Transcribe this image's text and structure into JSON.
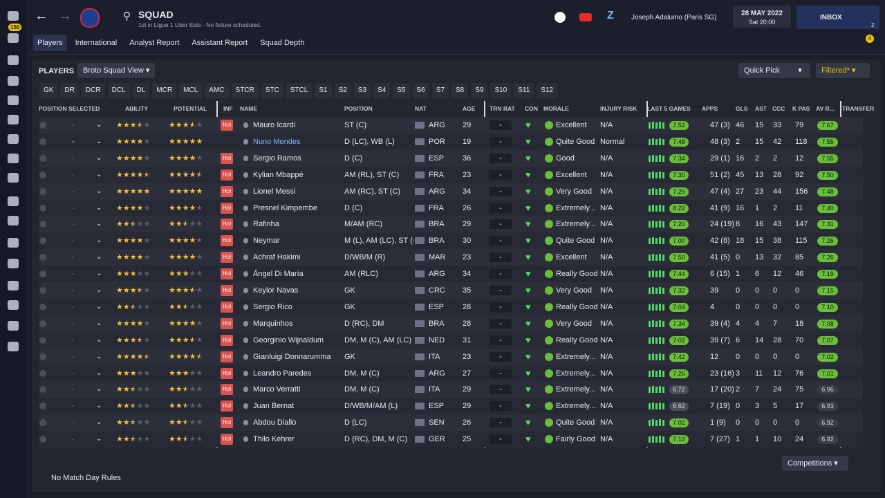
{
  "sidebar": {
    "badge": "150"
  },
  "header": {
    "title": "SQUAD",
    "subtitle": "1st in Ligue 1 Uber Eats - No fixture scheduled.",
    "manager": "Joseph Adalumo (Paris SG)",
    "date": "28 MAY 2022",
    "time": "Sat 20:00",
    "inbox": "INBOX",
    "inbox_count": "2",
    "alerts": "4"
  },
  "tabs": [
    "Players",
    "International",
    "Analyst Report",
    "Assistant Report",
    "Squad Depth"
  ],
  "toolbar": {
    "label": "PLAYERS",
    "view": "Broto Squad View",
    "quick_pick": "Quick Pick",
    "filter": "Filtered*"
  },
  "position_filters": [
    "GK",
    "DR",
    "DCR",
    "DCL",
    "DL",
    "MCR",
    "MCL",
    "AMC",
    "STCR",
    "STC",
    "STCL",
    "S1",
    "S2",
    "S3",
    "S4",
    "S5",
    "S6",
    "S7",
    "S8",
    "S9",
    "S10",
    "S11",
    "S12"
  ],
  "table": {
    "columns": {
      "selected": "POSITION SELECTED",
      "ability": "ABILITY",
      "potential": "POTENTIAL",
      "inf": "INF",
      "name": "NAME",
      "position": "POSITION",
      "nat": "NAT",
      "age": "AGE",
      "trn": "TRN RAT",
      "con": "CON",
      "morale": "MORALE",
      "injury": "INJURY RISK",
      "last5": "LAST 5 GAMES",
      "apps": "APPS",
      "gls": "GLS",
      "ast": "AST",
      "ccc": "CCC",
      "kpas": "K PAS",
      "avr": "AV R...",
      "transfer": "TRANSFER"
    },
    "rows": [
      {
        "selected": "-",
        "ability": 3.5,
        "potential": 3.5,
        "inf": "Hol",
        "name": "Mauro Icardi",
        "position": "ST (C)",
        "nat": "ARG",
        "age": 29,
        "trn": "-",
        "morale": "Excellent",
        "injury": "N/A",
        "last5": "7.52",
        "apps": "47 (3)",
        "gls": 46,
        "ast": 15,
        "ccc": 33,
        "kpas": 79,
        "avr": "7.67"
      },
      {
        "selected": "-",
        "ability": 4,
        "potential": 5,
        "name": "Nuno Mendes",
        "position": "D (LC), WB (L)",
        "nat": "POR",
        "age": 19,
        "trn": "-",
        "morale": "Quite Good",
        "injury": "Normal",
        "last5": "7.48",
        "apps": "48 (3)",
        "gls": 2,
        "ast": 15,
        "ccc": 42,
        "kpas": 118,
        "avr": "7.55"
      },
      {
        "selected": "-",
        "ability": 4,
        "potential": 4,
        "inf": "Hol",
        "name": "Sergio Ramos",
        "position": "D (C)",
        "nat": "ESP",
        "age": 36,
        "trn": "-",
        "morale": "Good",
        "injury": "N/A",
        "last5": "7.34",
        "apps": "29 (1)",
        "gls": 16,
        "ast": 2,
        "ccc": 2,
        "kpas": 12,
        "avr": "7.55"
      },
      {
        "selected": "-",
        "ability": 4.5,
        "potential": 4.5,
        "inf": "Hol",
        "name": "Kylian Mbappé",
        "position": "AM (RL), ST (C)",
        "nat": "FRA",
        "age": 23,
        "trn": "-",
        "morale": "Excellent",
        "injury": "N/A",
        "last5": "7.30",
        "apps": "51 (2)",
        "gls": 45,
        "ast": 13,
        "ccc": 28,
        "kpas": 92,
        "avr": "7.50"
      },
      {
        "selected": "-",
        "ability": 5,
        "potential": 5,
        "inf": "Hol",
        "name": "Lionel Messi",
        "position": "AM (RC), ST (C)",
        "nat": "ARG",
        "age": 34,
        "trn": "-",
        "morale": "Very Good",
        "injury": "N/A",
        "last5": "7.26",
        "apps": "47 (4)",
        "gls": 27,
        "ast": 23,
        "ccc": 44,
        "kpas": 156,
        "avr": "7.48"
      },
      {
        "selected": "-",
        "ability": 4,
        "potential": 4,
        "inf": "Hol",
        "name": "Presnel Kimpembe",
        "position": "D (C)",
        "nat": "FRA",
        "age": 26,
        "trn": "-",
        "morale": "Extremely...",
        "injury": "N/A",
        "last5": "8.22",
        "apps": "41 (9)",
        "gls": 16,
        "ast": 1,
        "ccc": 2,
        "kpas": 11,
        "avr": "7.40"
      },
      {
        "selected": "-",
        "ability": 2.5,
        "potential": 2.5,
        "inf": "Hol",
        "name": "Rafinha",
        "position": "M/AM (RC)",
        "nat": "BRA",
        "age": 29,
        "trn": "-",
        "morale": "Extremely...",
        "injury": "N/A",
        "last5": "7.20",
        "apps": "24 (19)",
        "gls": 8,
        "ast": 16,
        "ccc": 43,
        "kpas": 147,
        "avr": "7.31"
      },
      {
        "selected": "-",
        "ability": 4,
        "potential": 4,
        "inf": "Hol",
        "name": "Neymar",
        "position": "M (L), AM (LC), ST (C",
        "nat": "BRA",
        "age": 30,
        "trn": "-",
        "morale": "Quite Good",
        "injury": "N/A",
        "last5": "7.00",
        "apps": "42 (8)",
        "gls": 18,
        "ast": 15,
        "ccc": 38,
        "kpas": 115,
        "avr": "7.26"
      },
      {
        "selected": "-",
        "ability": 4,
        "potential": 4,
        "inf": "Hol",
        "name": "Achraf Hakimi",
        "position": "D/WB/M (R)",
        "nat": "MAR",
        "age": 23,
        "trn": "-",
        "morale": "Excellent",
        "injury": "N/A",
        "last5": "7.50",
        "apps": "41 (5)",
        "gls": 0,
        "ast": 13,
        "ccc": 32,
        "kpas": 85,
        "avr": "7.26"
      },
      {
        "selected": "-",
        "ability": 3,
        "potential": 3,
        "inf": "Hol",
        "name": "Ángel Di María",
        "position": "AM (RLC)",
        "nat": "ARG",
        "age": 34,
        "trn": "-",
        "morale": "Really Good",
        "injury": "N/A",
        "last5": "7.44",
        "apps": "6 (15)",
        "gls": 1,
        "ast": 6,
        "ccc": 12,
        "kpas": 46,
        "avr": "7.19"
      },
      {
        "selected": "-",
        "ability": 3.5,
        "potential": 3.5,
        "inf": "Hol",
        "name": "Keylor Navas",
        "position": "GK",
        "nat": "CRC",
        "age": 35,
        "trn": "-",
        "morale": "Very Good",
        "injury": "N/A",
        "last5": "7.32",
        "apps": "39",
        "gls": 0,
        "ast": 0,
        "ccc": 0,
        "kpas": 0,
        "avr": "7.15"
      },
      {
        "selected": "-",
        "ability": 2.5,
        "potential": 2.5,
        "inf": "Hol",
        "name": "Sergio Rico",
        "position": "GK",
        "nat": "ESP",
        "age": 28,
        "trn": "-",
        "morale": "Really Good",
        "injury": "N/A",
        "last5": "7.04",
        "apps": "4",
        "gls": 0,
        "ast": 0,
        "ccc": 0,
        "kpas": 0,
        "avr": "7.10"
      },
      {
        "selected": "-",
        "ability": 4,
        "potential": 4,
        "inf": "Hol",
        "name": "Marquinhos",
        "position": "D (RC), DM",
        "nat": "BRA",
        "age": 28,
        "trn": "-",
        "morale": "Very Good",
        "injury": "N/A",
        "last5": "7.34",
        "apps": "39 (4)",
        "gls": 4,
        "ast": 4,
        "ccc": 7,
        "kpas": 18,
        "avr": "7.08"
      },
      {
        "selected": "-",
        "ability": 3.5,
        "potential": 3.5,
        "inf": "Hol",
        "name": "Georginio Wijnaldum",
        "position": "DM, M (C), AM (LC)",
        "nat": "NED",
        "age": 31,
        "trn": "-",
        "morale": "Really Good",
        "injury": "N/A",
        "last5": "7.02",
        "apps": "39 (7)",
        "gls": 6,
        "ast": 14,
        "ccc": 28,
        "kpas": 70,
        "avr": "7.07"
      },
      {
        "selected": "-",
        "ability": 4.5,
        "potential": 4.5,
        "inf": "Hol",
        "name": "Gianluigi Donnarumma",
        "position": "GK",
        "nat": "ITA",
        "age": 23,
        "trn": "-",
        "morale": "Extremely...",
        "injury": "N/A",
        "last5": "7.42",
        "apps": "12",
        "gls": 0,
        "ast": 0,
        "ccc": 0,
        "kpas": 0,
        "avr": "7.02"
      },
      {
        "selected": "-",
        "ability": 3,
        "potential": 3,
        "inf": "Hol",
        "name": "Leandro Paredes",
        "position": "DM, M (C)",
        "nat": "ARG",
        "age": 27,
        "trn": "-",
        "morale": "Extremely...",
        "injury": "N/A",
        "last5": "7.26",
        "apps": "23 (16)",
        "gls": 3,
        "ast": 11,
        "ccc": 12,
        "kpas": 76,
        "avr": "7.01"
      },
      {
        "selected": "-",
        "ability": 2.5,
        "potential": 2.5,
        "inf": "Hol",
        "name": "Marco Verratti",
        "position": "DM, M (C)",
        "nat": "ITA",
        "age": 29,
        "trn": "-",
        "morale": "Extremely...",
        "injury": "N/A",
        "last5": "6.72",
        "apps": "17 (20)",
        "gls": 2,
        "ast": 7,
        "ccc": 24,
        "kpas": 75,
        "avr": "6.96"
      },
      {
        "selected": "-",
        "ability": 2.5,
        "potential": 2.5,
        "inf": "Hol",
        "name": "Juan Bernat",
        "position": "D/WB/M/AM (L)",
        "nat": "ESP",
        "age": 29,
        "trn": "-",
        "morale": "Extremely...",
        "injury": "N/A",
        "last5": "6.62",
        "apps": "7 (19)",
        "gls": 0,
        "ast": 3,
        "ccc": 5,
        "kpas": 17,
        "avr": "6.93"
      },
      {
        "selected": "-",
        "ability": 2.5,
        "potential": 2.5,
        "inf": "Hol",
        "name": "Abdou Diallo",
        "position": "D (LC)",
        "nat": "SEN",
        "age": 26,
        "trn": "-",
        "morale": "Quite Good",
        "injury": "N/A",
        "last5": "7.02",
        "apps": "1 (9)",
        "gls": 0,
        "ast": 0,
        "ccc": 0,
        "kpas": 0,
        "avr": "6.92"
      },
      {
        "selected": "-",
        "ability": 2.5,
        "potential": 2.5,
        "inf": "Hol",
        "name": "Thilo Kehrer",
        "position": "D (RC), DM, M (C)",
        "nat": "GER",
        "age": 25,
        "trn": "-",
        "morale": "Fairly Good",
        "injury": "N/A",
        "last5": "7.12",
        "apps": "7 (27)",
        "gls": 1,
        "ast": 1,
        "ccc": 10,
        "kpas": 24,
        "avr": "6.92"
      }
    ]
  },
  "footer": {
    "rules": "No Match Day Rules",
    "competitions": "Competitions"
  }
}
